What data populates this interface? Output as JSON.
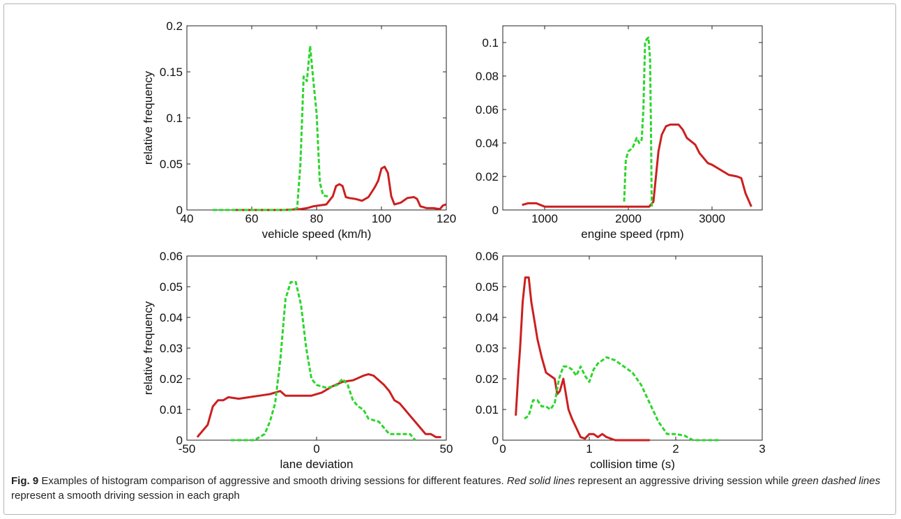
{
  "chart_data": [
    {
      "type": "line",
      "xlabel": "vehicle speed (km/h)",
      "ylabel": "relative frequency",
      "xlim": [
        40,
        120
      ],
      "ylim": [
        0,
        0.2
      ],
      "xticks": [
        40,
        60,
        80,
        100,
        120
      ],
      "yticks": [
        0,
        0.05,
        0.1,
        0.15,
        0.2
      ],
      "xtick_labels": [
        "40",
        "60",
        "80",
        "100",
        "120"
      ],
      "ytick_labels": [
        "0",
        "0.05",
        "0.1",
        "0.15",
        "0.2"
      ],
      "grid": false,
      "series": [
        {
          "color": "#cc1f1f",
          "style": "solid",
          "x": [
            55,
            70,
            75,
            77,
            79,
            81,
            83,
            85,
            86,
            87,
            88,
            89,
            90,
            92,
            94,
            96,
            98,
            99,
            100,
            101,
            102,
            103,
            104,
            106,
            108,
            110,
            111,
            112,
            114,
            116,
            118,
            119,
            120
          ],
          "y": [
            0,
            0,
            0.001,
            0.002,
            0.004,
            0.005,
            0.006,
            0.015,
            0.026,
            0.028,
            0.026,
            0.014,
            0.013,
            0.012,
            0.01,
            0.014,
            0.025,
            0.032,
            0.045,
            0.047,
            0.04,
            0.015,
            0.006,
            0.008,
            0.013,
            0.014,
            0.012,
            0.004,
            0.002,
            0.002,
            0.001,
            0.005,
            0.006
          ]
        },
        {
          "color": "#2bd62b",
          "style": "dashed",
          "x": [
            48,
            72,
            74,
            75,
            76,
            77,
            78,
            79,
            80,
            81,
            82,
            83,
            84
          ],
          "y": [
            0,
            0,
            0.002,
            0.05,
            0.145,
            0.14,
            0.178,
            0.14,
            0.105,
            0.03,
            0.016,
            0.015,
            0.015
          ]
        }
      ]
    },
    {
      "type": "line",
      "xlabel": "engine speed (rpm)",
      "ylabel": "",
      "xlim": [
        500,
        3600
      ],
      "ylim": [
        0,
        0.11
      ],
      "xticks": [
        1000,
        2000,
        3000
      ],
      "yticks": [
        0,
        0.02,
        0.04,
        0.06,
        0.08,
        0.1
      ],
      "xtick_labels": [
        "1000",
        "2000",
        "3000"
      ],
      "ytick_labels": [
        "0",
        "0.02",
        "0.04",
        "0.06",
        "0.08",
        "0.1"
      ],
      "grid": false,
      "series": [
        {
          "color": "#cc1f1f",
          "style": "solid",
          "x": [
            730,
            800,
            900,
            950,
            1000,
            1500,
            2000,
            2250,
            2300,
            2330,
            2360,
            2400,
            2450,
            2500,
            2600,
            2650,
            2700,
            2750,
            2800,
            2850,
            2900,
            2950,
            3000,
            3100,
            3200,
            3300,
            3350,
            3400,
            3470
          ],
          "y": [
            0.003,
            0.004,
            0.004,
            0.003,
            0.002,
            0.002,
            0.002,
            0.002,
            0.005,
            0.02,
            0.035,
            0.045,
            0.05,
            0.051,
            0.051,
            0.048,
            0.043,
            0.041,
            0.039,
            0.034,
            0.031,
            0.028,
            0.027,
            0.024,
            0.021,
            0.02,
            0.019,
            0.01,
            0.002
          ]
        },
        {
          "color": "#2bd62b",
          "style": "dashed",
          "x": [
            1950,
            1970,
            2000,
            2050,
            2100,
            2130,
            2160,
            2180,
            2200,
            2220,
            2240,
            2260,
            2270,
            2280
          ],
          "y": [
            0.005,
            0.03,
            0.035,
            0.037,
            0.043,
            0.04,
            0.042,
            0.06,
            0.1,
            0.102,
            0.103,
            0.09,
            0.05,
            0.002
          ]
        }
      ]
    },
    {
      "type": "line",
      "xlabel": "lane deviation",
      "ylabel": "relative frequency",
      "xlim": [
        -50,
        50
      ],
      "ylim": [
        0,
        0.06
      ],
      "xticks": [
        -50,
        0,
        50
      ],
      "yticks": [
        0,
        0.01,
        0.02,
        0.03,
        0.04,
        0.05,
        0.06
      ],
      "xtick_labels": [
        "-50",
        "0",
        "50"
      ],
      "ytick_labels": [
        "0",
        "0.01",
        "0.02",
        "0.03",
        "0.04",
        "0.05",
        "0.06"
      ],
      "grid": false,
      "series": [
        {
          "color": "#cc1f1f",
          "style": "solid",
          "x": [
            -46,
            -44,
            -42,
            -40,
            -38,
            -36,
            -34,
            -30,
            -26,
            -22,
            -18,
            -14,
            -12,
            -10,
            -6,
            -2,
            2,
            6,
            10,
            14,
            18,
            20,
            22,
            24,
            26,
            28,
            30,
            32,
            34,
            36,
            38,
            40,
            42,
            44,
            46,
            48
          ],
          "y": [
            0.001,
            0.003,
            0.005,
            0.011,
            0.013,
            0.013,
            0.014,
            0.0135,
            0.014,
            0.0145,
            0.015,
            0.016,
            0.0145,
            0.0145,
            0.0145,
            0.0145,
            0.0155,
            0.0175,
            0.019,
            0.0195,
            0.021,
            0.0215,
            0.021,
            0.0195,
            0.018,
            0.016,
            0.013,
            0.012,
            0.01,
            0.008,
            0.006,
            0.004,
            0.002,
            0.002,
            0.001,
            0.001
          ]
        },
        {
          "color": "#2bd62b",
          "style": "dashed",
          "x": [
            -33,
            -24,
            -20,
            -18,
            -16,
            -14,
            -12,
            -10,
            -8,
            -6,
            -4,
            -2,
            0,
            2,
            4,
            6,
            8,
            10,
            12,
            14,
            16,
            18,
            20,
            24,
            28,
            32,
            36,
            38
          ],
          "y": [
            0,
            0,
            0.002,
            0.006,
            0.012,
            0.026,
            0.046,
            0.0515,
            0.0515,
            0.044,
            0.03,
            0.02,
            0.018,
            0.0175,
            0.017,
            0.0175,
            0.018,
            0.02,
            0.018,
            0.013,
            0.011,
            0.01,
            0.007,
            0.006,
            0.002,
            0.002,
            0.002,
            0
          ]
        }
      ]
    },
    {
      "type": "line",
      "xlabel": "collision time (s)",
      "ylabel": "",
      "xlim": [
        0,
        3
      ],
      "ylim": [
        0,
        0.06
      ],
      "xticks": [
        0,
        1,
        2,
        3
      ],
      "yticks": [
        0,
        0.01,
        0.02,
        0.03,
        0.04,
        0.05,
        0.06
      ],
      "xtick_labels": [
        "0",
        "1",
        "2",
        "3"
      ],
      "ytick_labels": [
        "0",
        "0.01",
        "0.02",
        "0.03",
        "0.04",
        "0.05",
        "0.06"
      ],
      "grid": false,
      "series": [
        {
          "color": "#cc1f1f",
          "style": "solid",
          "x": [
            0.15,
            0.18,
            0.2,
            0.23,
            0.26,
            0.3,
            0.33,
            0.36,
            0.4,
            0.45,
            0.5,
            0.55,
            0.6,
            0.63,
            0.66,
            0.7,
            0.73,
            0.76,
            0.8,
            0.85,
            0.9,
            0.95,
            1.0,
            1.05,
            1.1,
            1.15,
            1.2,
            1.3,
            1.5,
            1.7
          ],
          "y": [
            0.008,
            0.022,
            0.03,
            0.045,
            0.053,
            0.053,
            0.045,
            0.04,
            0.033,
            0.027,
            0.022,
            0.021,
            0.02,
            0.015,
            0.016,
            0.02,
            0.015,
            0.01,
            0.007,
            0.004,
            0.001,
            0.0005,
            0.002,
            0.002,
            0.001,
            0.002,
            0.001,
            0,
            0,
            0
          ]
        },
        {
          "color": "#2bd62b",
          "style": "dashed",
          "x": [
            0.25,
            0.3,
            0.35,
            0.4,
            0.45,
            0.5,
            0.55,
            0.6,
            0.65,
            0.7,
            0.75,
            0.8,
            0.85,
            0.9,
            0.95,
            1.0,
            1.05,
            1.1,
            1.2,
            1.3,
            1.4,
            1.5,
            1.6,
            1.7,
            1.8,
            1.9,
            2.0,
            2.1,
            2.2,
            2.5
          ],
          "y": [
            0.007,
            0.008,
            0.013,
            0.013,
            0.011,
            0.011,
            0.01,
            0.012,
            0.02,
            0.024,
            0.024,
            0.023,
            0.021,
            0.024,
            0.021,
            0.019,
            0.023,
            0.025,
            0.027,
            0.026,
            0.024,
            0.022,
            0.018,
            0.012,
            0.006,
            0.002,
            0.002,
            0.0015,
            0,
            0
          ]
        }
      ]
    }
  ],
  "caption": {
    "label": "Fig. 9",
    "text_1": " Examples of histogram comparison of aggressive and smooth driving sessions for different features. ",
    "italic_1": "Red solid lines",
    "text_2": " represent an aggressive driving session while ",
    "italic_2": "green dashed lines",
    "text_3": " represent a smooth driving session in each graph"
  }
}
